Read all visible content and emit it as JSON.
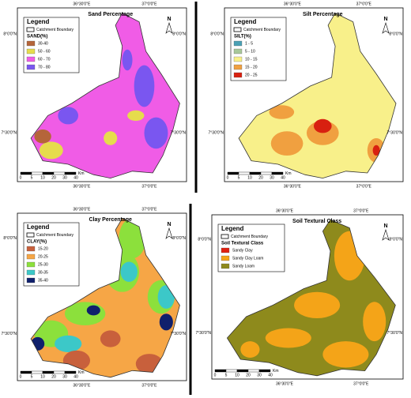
{
  "panels": [
    {
      "title": "Sand Percentage",
      "north": "N",
      "lon_top": [
        "36°30'0\"E",
        "37°0'0\"E"
      ],
      "lon_bottom": [
        "36°30'0\"E",
        "37°0'0\"E"
      ],
      "lat_left": [
        "8°0'0\"N",
        "7°30'0\"N"
      ],
      "lat_right": [
        "8°0'0\"N",
        "7°30'0\"N"
      ],
      "legend": {
        "title": "Legend",
        "boundary": "Catchment Boundary",
        "heading": "SAND(%)",
        "items": [
          {
            "label": "30-40",
            "color": "#b5653a"
          },
          {
            "label": "50 - 60",
            "color": "#e6dc4c"
          },
          {
            "label": "60 - 70",
            "color": "#f05ce6"
          },
          {
            "label": "70 - 80",
            "color": "#7a56f0"
          }
        ]
      },
      "scale": {
        "ticks": [
          "0",
          "5",
          "10",
          "20",
          "30",
          "40"
        ],
        "unit": "Km"
      }
    },
    {
      "title": "Silt Percentage",
      "north": "N",
      "lon_top": [
        "36°30'0\"E",
        "37°0'0\"E"
      ],
      "lon_bottom": [
        "36°30'0\"E",
        "37°0'0\"E"
      ],
      "lat_left": [
        "8°0'0\"N",
        "7°30'0\"N"
      ],
      "lat_right": [
        "8°0'0\"N",
        "7°30'0\"N"
      ],
      "legend": {
        "title": "Legend",
        "boundary": "Catchment Boundary",
        "heading": "SILT(%)",
        "items": [
          {
            "label": "1 - 5",
            "color": "#4aa0b4"
          },
          {
            "label": "5 - 10",
            "color": "#a8c89a"
          },
          {
            "label": "10 - 15",
            "color": "#f8f08a"
          },
          {
            "label": "15 - 20",
            "color": "#f0a040"
          },
          {
            "label": "20 - 25",
            "color": "#d82010"
          }
        ]
      },
      "scale": {
        "ticks": [
          "0",
          "5",
          "10",
          "20",
          "30",
          "40"
        ],
        "unit": "Km"
      }
    },
    {
      "title": "Clay Percentage",
      "north": "N",
      "lon_top": [
        "36°30'0\"E",
        "37°0'0\"E"
      ],
      "lon_bottom": [
        "36°30'0\"E",
        "37°0'0\"E"
      ],
      "lat_left": [
        "8°0'0\"N",
        "7°30'0\"N"
      ],
      "lat_right": [
        "8°0'0\"N",
        "7°30'0\"N"
      ],
      "legend": {
        "title": "Legend",
        "boundary": "Catchment Boundary",
        "heading": "CLAY(%)",
        "items": [
          {
            "label": "15-20",
            "color": "#c8603c"
          },
          {
            "label": "20-25",
            "color": "#f6a646"
          },
          {
            "label": "25-30",
            "color": "#8ce03c"
          },
          {
            "label": "30-35",
            "color": "#3cc8c8"
          },
          {
            "label": "35-40",
            "color": "#10206c"
          }
        ]
      },
      "scale": {
        "ticks": [
          "0",
          "5",
          "10",
          "20",
          "30",
          "40"
        ],
        "unit": "Km"
      }
    },
    {
      "title": "Soil Textural Class",
      "north": "N",
      "lon_top": [
        "36°30'0\"E",
        "37°0'0\"E"
      ],
      "lon_bottom": [
        "36°30'0\"E",
        "37°0'0\"E"
      ],
      "lat_left": [
        "8°0'0\"N",
        "7°30'0\"N"
      ],
      "lat_right": [
        "8°0'0\"N",
        "7°30'0\"N"
      ],
      "legend": {
        "title": "Legend",
        "boundary": "Catchment Boundary",
        "heading": "Soil Textural Class",
        "items": [
          {
            "label": "Sandy Clay",
            "color": "#e02010"
          },
          {
            "label": "Sandy Clay Loam",
            "color": "#f4a418"
          },
          {
            "label": "Sandy Loam",
            "color": "#8e8a1c"
          }
        ]
      },
      "scale": {
        "ticks": [
          "0",
          "5",
          "10",
          "20",
          "30",
          "40"
        ],
        "unit": "Km"
      }
    }
  ]
}
